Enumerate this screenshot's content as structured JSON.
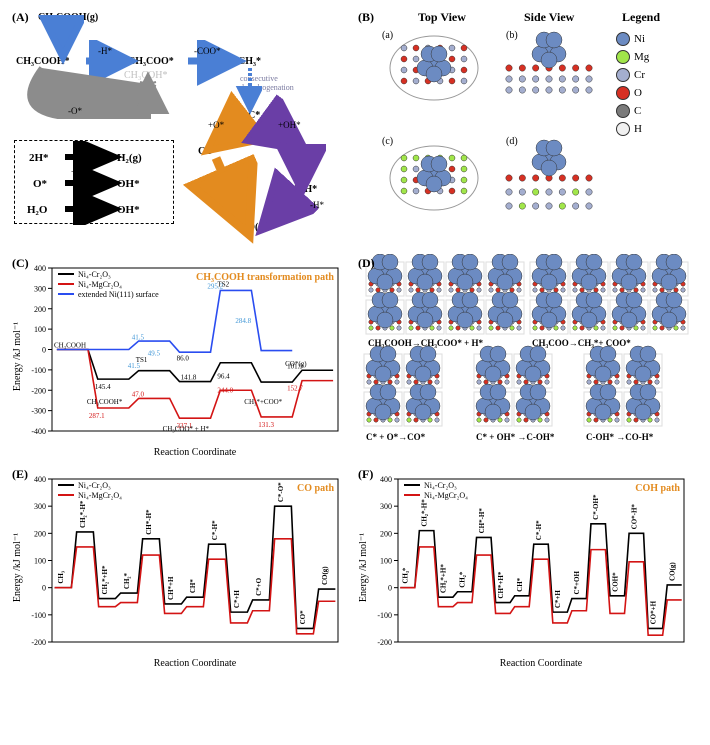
{
  "colors": {
    "blueArrow": "#4a7fd5",
    "grayArrow": "#8c8c8c",
    "blackArrow": "#000000",
    "orangeArrow": "#e38b1f",
    "purpleArrow": "#6a3ea6",
    "ni": "#6c8bc2",
    "mg": "#a1e64a",
    "cr": "#a4aecf",
    "o": "#d63023",
    "c": "#7a7a7a",
    "h": "#f0f0f0",
    "lineBlack": "#000000",
    "lineRed": "#d31414",
    "lineBlue": "#2a4df0",
    "dashedBlueTxt": "#3f96d6",
    "dashedRedTxt": "#d31414",
    "annoBlack": "#000000",
    "titleOrange": "#e38b1f"
  },
  "panelLabels": {
    "A": "(A)",
    "B": "(B)",
    "C": "(C)",
    "D": "(D)",
    "E": "(E)",
    "F": "(F)"
  },
  "panelA": {
    "species": {
      "top": "CH₃COOH(g)",
      "s1": "CH₃COOH*",
      "s2": "CH₃COO*",
      "s2b": "CH₃COH*",
      "s3": "CH₃*",
      "note": "consecutive\ndehydrogenation",
      "Cstar": "C*",
      "CO": "CO*",
      "COH": "C-OH*",
      "COH2": "CO-H*",
      "COg": "CO(g)"
    },
    "arrLabels": {
      "mH": "-H*",
      "mCOO": "-COO*",
      "mO": "-O*",
      "pO": "+O*",
      "pOH": "+OH*",
      "mHstar": "-H*"
    },
    "sideRxns": [
      {
        "lhs": "2H*",
        "rhs": "H₂(g)"
      },
      {
        "lhs": "O*",
        "over": "+H*",
        "rhs": "OH*"
      },
      {
        "lhs": "H₂O",
        "over": "-H*",
        "rhs": "OH*"
      }
    ]
  },
  "panelB": {
    "headers": {
      "top": "Top View",
      "side": "Side View",
      "legend": "Legend"
    },
    "sub": {
      "a": "(a)",
      "b": "(b)",
      "c": "(c)",
      "d": "(d)"
    },
    "legend": [
      {
        "name": "Ni",
        "colorKey": "ni"
      },
      {
        "name": "Mg",
        "colorKey": "mg"
      },
      {
        "name": "Cr",
        "colorKey": "cr"
      },
      {
        "name": "O",
        "colorKey": "o"
      },
      {
        "name": "C",
        "colorKey": "c"
      },
      {
        "name": "H",
        "colorKey": "h"
      }
    ]
  },
  "panelC": {
    "title": "CH₃COOH transformation path",
    "xlabel": "Reaction Coordinate",
    "ylabel": "Energy /kJ mol⁻¹",
    "ylim": [
      -400,
      400
    ],
    "yticks": [
      -400,
      -300,
      -200,
      -100,
      0,
      100,
      200,
      300,
      400
    ],
    "legend": [
      {
        "label": "Ni₄-Cr₂O₃",
        "colorKey": "lineBlack"
      },
      {
        "label": "Ni₄-MgCr₂O₄",
        "colorKey": "lineRed"
      },
      {
        "label": "extended Ni(111) surface",
        "colorKey": "lineBlue"
      }
    ],
    "stages": [
      "CH₃COOH",
      "CH₃COOH*",
      "TS1",
      "CH₃COO* + H*",
      "TS2",
      "CH₃* + COO*",
      "CO*(g)"
    ],
    "series": {
      "black": [
        0,
        -145.4,
        -104,
        -157.5,
        -65,
        -160,
        -101.9
      ],
      "red": [
        0,
        -287.1,
        -240,
        -337.1,
        -200,
        -331,
        -152.7
      ],
      "blue": [
        0,
        0,
        41.5,
        -13,
        290,
        -5,
        null
      ]
    },
    "annotations": {
      "black": [
        "145.4",
        "41.5",
        "86.0",
        "96.4",
        "101.9",
        "141.8"
      ],
      "red": [
        "287.1",
        "47.0",
        "337.1",
        "244.0",
        "131.3",
        "152.7"
      ],
      "blue": [
        "41.5",
        "49.5",
        "295.2",
        "284.8"
      ],
      "labelsOnPlot": [
        "CH₃COOH",
        "CH₃COOH*",
        "TS1",
        "CH₃COO* + H*",
        "TS2",
        "CH₃*+COO*",
        "CO*(g)"
      ]
    }
  },
  "panelD": {
    "captions": [
      "CH₃COOH→CH₃COO* + H*",
      "CH₃COO→CH₃*+ COO*",
      "C* + O*→CO*",
      "C* + OH* →C-OH*",
      "C-OH* →CO-H*"
    ]
  },
  "panelE": {
    "title": "CO path",
    "xlabel": "Reaction Coordinate",
    "ylabel": "Energy /kJ mol⁻¹",
    "ylim": [
      -200,
      400
    ],
    "yticks": [
      -200,
      -100,
      0,
      100,
      200,
      300,
      400
    ],
    "legend": [
      {
        "label": "Ni₄-Cr₂O₃",
        "colorKey": "lineBlack"
      },
      {
        "label": "Ni₄-MgCr₂O₄",
        "colorKey": "lineRed"
      }
    ],
    "stages": [
      "CH₃",
      "CH₂*-H*",
      "CH₂*+H*",
      "CH₂*",
      "CH*-H*",
      "CH*+H",
      "CH*",
      "C*-H*",
      "C*+H",
      "C*+O",
      "C*-O*",
      "CO*",
      "CO(g)"
    ],
    "series": {
      "black": [
        0,
        205,
        -40,
        -20,
        180,
        -60,
        -35,
        160,
        -90,
        -45,
        300,
        -150,
        -5
      ],
      "red": [
        0,
        150,
        -70,
        -55,
        120,
        -95,
        -70,
        105,
        -130,
        -85,
        180,
        -170,
        -50
      ]
    }
  },
  "panelF": {
    "title": "COH path",
    "xlabel": "Reaction Coordinate",
    "ylabel": "Energy /kJ mol⁻¹",
    "ylim": [
      -200,
      400
    ],
    "yticks": [
      -200,
      -100,
      0,
      100,
      200,
      300,
      400
    ],
    "legend": [
      {
        "label": "Ni₄-Cr₂O₃",
        "colorKey": "lineBlack"
      },
      {
        "label": "Ni₄-MgCr₂O₄",
        "colorKey": "lineRed"
      }
    ],
    "stages": [
      "CH₃*",
      "CH₂*-H*",
      "CH₂*+H*",
      "CH₂*",
      "CH*-H*",
      "CH*+H*",
      "CH*",
      "C*-H*",
      "C*+H",
      "C*+OH",
      "C*-OH*",
      "COH*",
      "CO*-H*",
      "CO*+H",
      "CO(g)"
    ],
    "series": {
      "black": [
        0,
        210,
        -35,
        -15,
        185,
        -55,
        -30,
        160,
        -90,
        -40,
        235,
        -30,
        200,
        -150,
        10
      ],
      "red": [
        0,
        150,
        -70,
        -55,
        120,
        -95,
        -70,
        105,
        -130,
        -85,
        140,
        -95,
        95,
        -175,
        -45
      ]
    }
  }
}
